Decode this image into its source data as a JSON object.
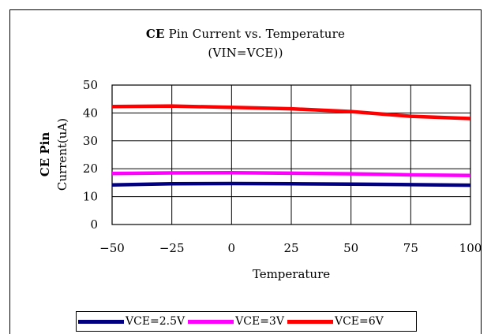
{
  "chart_data": {
    "type": "line",
    "title_bold": "CE",
    "title_rest": " Pin Current vs. Temperature",
    "subtitle": "(VIN=VCE))",
    "xlabel": "Temperature",
    "ylabel_line1": "CE Pin",
    "ylabel_line2": "Current(uA)",
    "xlim": [
      -50,
      100
    ],
    "ylim": [
      0,
      50
    ],
    "xticks": [
      "-50",
      "-25",
      "0",
      "25",
      "50",
      "75",
      "100"
    ],
    "yticks": [
      "0",
      "10",
      "20",
      "30",
      "40",
      "50"
    ],
    "x": [
      -50,
      -25,
      0,
      25,
      50,
      75,
      100
    ],
    "series": [
      {
        "name": "VCE=2.5V",
        "color": "#000080",
        "values": [
          14.2,
          14.6,
          14.7,
          14.6,
          14.5,
          14.3,
          14.1
        ]
      },
      {
        "name": "VCE=3V",
        "color": "#ff00ff",
        "values": [
          18.3,
          18.5,
          18.6,
          18.4,
          18.2,
          17.8,
          17.6
        ]
      },
      {
        "name": "VCE=6V",
        "color": "#ff0000",
        "values": [
          42.3,
          42.5,
          42.0,
          41.5,
          40.5,
          38.8,
          38.0
        ]
      }
    ],
    "grid": true,
    "legend_position": "bottom"
  }
}
